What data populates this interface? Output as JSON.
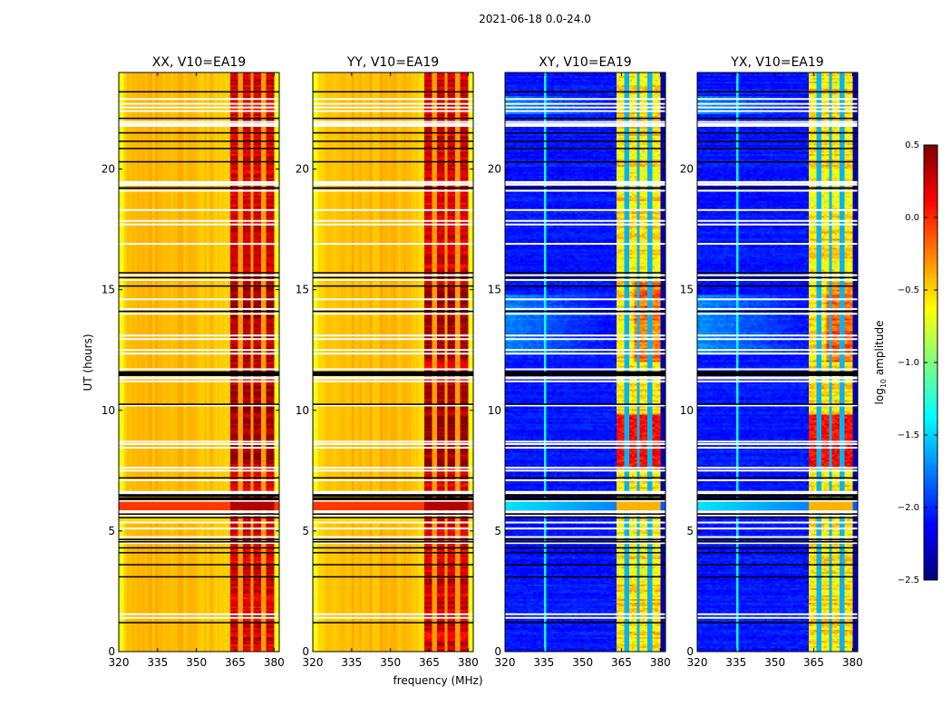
{
  "chart_data": {
    "type": "heatmap",
    "title": "2021-06-18 0.0-24.0",
    "xlabel": "frequency (MHz)",
    "ylabel": "UT (hours)",
    "xlim": [
      320,
      382
    ],
    "ylim": [
      0,
      24
    ],
    "xticks": [
      "320",
      "335",
      "350",
      "365",
      "380"
    ],
    "yticks": [
      "0",
      "5",
      "10",
      "15",
      "20"
    ],
    "panels": [
      {
        "title": "XX, V10=EA19",
        "kind": "parallel"
      },
      {
        "title": "YY, V10=EA19",
        "kind": "parallel"
      },
      {
        "title": "XY, V10=EA19",
        "kind": "cross"
      },
      {
        "title": "YX, V10=EA19",
        "kind": "cross"
      }
    ],
    "rfi_band_mhz": [
      363,
      380
    ],
    "colorbar": {
      "label": "log10 amplitude",
      "label_main": "log",
      "label_sub": "10",
      "label_rest": " amplitude",
      "colormap": "jet",
      "range": [
        -2.5,
        0.5
      ],
      "ticks": [
        "0.5",
        "0.0",
        "−0.5",
        "−1.0",
        "−1.5",
        "−2.0",
        "−2.5"
      ]
    },
    "flagged_rows_ut_white": [
      1.4,
      1.55,
      4.5,
      4.75,
      5.1,
      5.35,
      5.65,
      6.25,
      6.55,
      6.62,
      7.1,
      7.5,
      7.62,
      8.45,
      8.6,
      8.7,
      10.2,
      11.2,
      11.7,
      12.35,
      12.5,
      12.95,
      13.1,
      14.0,
      14.2,
      14.6,
      15.4,
      15.6,
      16.9,
      17.7,
      17.85,
      18.3,
      19.1,
      19.35,
      19.45,
      21.8,
      21.95,
      22.4,
      22.55,
      22.7,
      22.9
    ],
    "flagged_rows_ut_black": [
      1.2,
      3.1,
      3.6,
      4.1,
      4.3,
      4.55,
      4.65,
      5.55,
      5.7,
      6.3,
      6.45,
      6.5,
      7.2,
      10.25,
      11.45,
      11.5,
      11.55,
      14.1,
      15.15,
      15.5,
      15.7,
      19.2,
      19.22,
      20.3,
      20.85,
      21.15,
      21.5,
      21.8,
      22.1,
      23.2
    ],
    "highlight_rows_ut": [
      {
        "ut": 6.05,
        "band": [
          5.85,
          6.2
        ],
        "note": "strong broadband row"
      }
    ]
  }
}
